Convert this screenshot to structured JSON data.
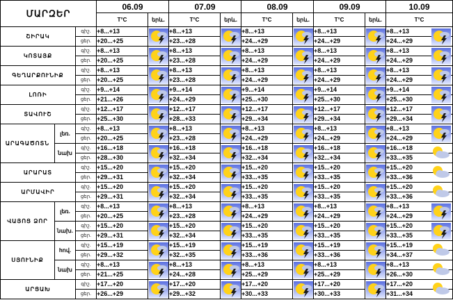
{
  "header": {
    "region_header": "ՄԱՐԶԵՐ",
    "temp_label": "T°C",
    "weather_label": "երև.",
    "dates": [
      "06.09",
      "07.09",
      "08.09",
      "09.09",
      "10.09"
    ]
  },
  "regions": [
    {
      "name": "ՇԻՐԱԿ",
      "subs": [
        {
          "zone": "",
          "lines": [
            {
              "tod": "գիշ.",
              "temps": [
                "+8...+13",
                "+8...+13",
                "+8...+13",
                "+8...+13",
                "+8...+13"
              ]
            },
            {
              "tod": "ցեր.",
              "temps": [
                "+20...+25",
                "+23...+28",
                "+24...+29",
                "+24...+29",
                "+24...+29"
              ]
            }
          ],
          "icons": [
            "storm",
            "storm",
            "storm",
            "storm",
            "storm"
          ]
        }
      ]
    },
    {
      "name": "ԿՈՏԱՅՔ",
      "subs": [
        {
          "zone": "",
          "lines": [
            {
              "tod": "գիշ.",
              "temps": [
                "+8...+13",
                "+8...+13",
                "+8...+13",
                "+8...+13",
                "+8...+13"
              ]
            },
            {
              "tod": "ցեր.",
              "temps": [
                "+20...+25",
                "+23...+28",
                "+24...+29",
                "+24...+29",
                "+24...+29"
              ]
            }
          ],
          "icons": [
            "storm",
            "storm",
            "storm",
            "storm",
            "storm"
          ]
        }
      ]
    },
    {
      "name": "ԳԵՂԱՐՔՈՒՆԻՔ",
      "subs": [
        {
          "zone": "",
          "lines": [
            {
              "tod": "գիշ.",
              "temps": [
                "+8...+13",
                "+8...+13",
                "+8...+13",
                "+8...+13",
                "+8...+13"
              ]
            },
            {
              "tod": "ցեր.",
              "temps": [
                "+20...+25",
                "+23...+28",
                "+24...+29",
                "+24...+29",
                "+24...+29"
              ]
            }
          ],
          "icons": [
            "storm",
            "storm",
            "storm",
            "storm",
            "storm"
          ]
        }
      ]
    },
    {
      "name": "ԼՈՌԻ",
      "subs": [
        {
          "zone": "",
          "lines": [
            {
              "tod": "գիշ.",
              "temps": [
                "+9...+14",
                "+9...+14",
                "+9...+14",
                "+9...+14",
                "+9...+14"
              ]
            },
            {
              "tod": "ցեր.",
              "temps": [
                "+21...+26",
                "+24...+29",
                "+25...+30",
                "+25...+30",
                "+25...+30"
              ]
            }
          ],
          "icons": [
            "storm",
            "storm",
            "storm",
            "storm",
            "storm"
          ]
        }
      ]
    },
    {
      "name": "ՏԱՎՈՒՇ",
      "subs": [
        {
          "zone": "",
          "lines": [
            {
              "tod": "գիշ.",
              "temps": [
                "+12...+17",
                "+12...+17",
                "+12...+17",
                "+12...+17",
                "+12...+17"
              ]
            },
            {
              "tod": "ցեր.",
              "temps": [
                "+25...+30",
                "+28...+33",
                "+29...+34",
                "+29...+34",
                "+29...+34"
              ]
            }
          ],
          "icons": [
            "storm",
            "storm",
            "storm",
            "storm",
            "storm"
          ]
        }
      ]
    },
    {
      "name": "ԱՐԱԳԱԾՈՏՆ",
      "subs": [
        {
          "zone": "լեռ.",
          "lines": [
            {
              "tod": "գիշ.",
              "temps": [
                "+8...+13",
                "+8...+13",
                "+8...+13",
                "+8...+13",
                "+8...+13"
              ]
            },
            {
              "tod": "ցեր.",
              "temps": [
                "+20...+25",
                "+23...+28",
                "+24...+29",
                "+24...+29",
                "+24...+29"
              ]
            }
          ],
          "icons": [
            "storm",
            "storm",
            "storm",
            "storm",
            "storm"
          ]
        },
        {
          "zone": "նախ",
          "lines": [
            {
              "tod": "գիշ.",
              "temps": [
                "+16...+18",
                "+16...+18",
                "+16...+18",
                "+16...+18",
                "+16...+18"
              ]
            },
            {
              "tod": "ցեր.",
              "temps": [
                "+28...+30",
                "+32...+34",
                "+32...+34",
                "+32...+34",
                "+33...+35"
              ]
            }
          ],
          "icons": [
            "storm",
            "storm",
            "storm",
            "storm",
            "partly"
          ]
        }
      ]
    },
    {
      "name": "ԱՐԱՐԱՏ",
      "subs": [
        {
          "zone": "",
          "lines": [
            {
              "tod": "գիշ.",
              "temps": [
                "+15...+20",
                "+15...+20",
                "+15...+20",
                "+15...+20",
                "+15...+20"
              ]
            },
            {
              "tod": "ցեր.",
              "temps": [
                "+29...+31",
                "+32...+34",
                "+33...+35",
                "+33...+35",
                "+33...+36"
              ]
            }
          ],
          "icons": [
            "storm",
            "storm",
            "storm",
            "storm",
            "partly"
          ]
        }
      ]
    },
    {
      "name": "ԱՐՄԱՎԻՐ",
      "subs": [
        {
          "zone": "",
          "lines": [
            {
              "tod": "գիշ.",
              "temps": [
                "+15...+20",
                "+15...+20",
                "+15...+20",
                "+15...+20",
                "+15...+20"
              ]
            },
            {
              "tod": "ցեր.",
              "temps": [
                "+29...+31",
                "+32...+34",
                "+33...+35",
                "+33...+35",
                "+33...+36"
              ]
            }
          ],
          "icons": [
            "storm",
            "storm",
            "storm",
            "storm",
            "partly"
          ]
        }
      ]
    },
    {
      "name": "ՎԱՅՈՑ ՁՈՐ",
      "subs": [
        {
          "zone": "լեռ.",
          "lines": [
            {
              "tod": "գիշ.",
              "temps": [
                "+8...+13",
                "+8...+13",
                "+8...+13",
                "+8...+13",
                "+8...+13"
              ]
            },
            {
              "tod": "ցեր.",
              "temps": [
                "+20...+25",
                "+23...+28",
                "+24...+29",
                "+24...+29",
                "+24...+29"
              ]
            }
          ],
          "icons": [
            "storm",
            "storm",
            "storm",
            "storm",
            "storm"
          ]
        },
        {
          "zone": "նախ.",
          "lines": [
            {
              "tod": "գիշ.",
              "temps": [
                "+15...+20",
                "+15...+20",
                "+15...+20",
                "+15...+20",
                "+15...+20"
              ]
            },
            {
              "tod": "ցեր.",
              "temps": [
                "+29...+31",
                "+32...+34",
                "+33...+35",
                "+33...+35",
                "+33...+35"
              ]
            }
          ],
          "icons": [
            "storm",
            "storm",
            "storm",
            "storm",
            "storm"
          ]
        }
      ]
    },
    {
      "name": "ՍՅՈՒՆԻՔ",
      "subs": [
        {
          "zone": "hով.",
          "lines": [
            {
              "tod": "գիշ.",
              "temps": [
                "+15...+19",
                "+15...+19",
                "+15...+19",
                "+15...+19",
                "+15...+19"
              ]
            },
            {
              "tod": "ցեր.",
              "temps": [
                "+29...+32",
                "+32...+35",
                "+33...+36",
                "+33...+36",
                "+34...+37"
              ]
            }
          ],
          "icons": [
            "storm",
            "storm",
            "storm",
            "storm",
            "partly"
          ]
        },
        {
          "zone": "նախ",
          "lines": [
            {
              "tod": "գիշ.",
              "temps": [
                "+8...+13",
                "+8...+13",
                "+8...+13",
                "+8...+13",
                "+8...+13"
              ]
            },
            {
              "tod": "ցեր.",
              "temps": [
                "+21...+25",
                "+24...+28",
                "+25...+29",
                "+25...+29",
                "+26...+30"
              ]
            }
          ],
          "icons": [
            "storm",
            "storm",
            "storm",
            "storm",
            "partly"
          ]
        }
      ]
    },
    {
      "name": "ԱՐՑԱԽ",
      "subs": [
        {
          "zone": "",
          "lines": [
            {
              "tod": "գիշ.",
              "temps": [
                "+17...+20",
                "+17...+20",
                "+17...+20",
                "+17...+20",
                "+17...+20"
              ]
            },
            {
              "tod": "ցեր.",
              "temps": [
                "+26...+29",
                "+29...+32",
                "+30...+33",
                "+30...+33",
                "+31...+34"
              ]
            }
          ],
          "icons": [
            "storm",
            "storm",
            "storm",
            "storm",
            "partly"
          ]
        }
      ]
    }
  ],
  "colors": {
    "header_fill": "#ffffff",
    "sun": "#ffd21a",
    "sky_top": "#5a6fe0",
    "sky_bottom": "#dfe6ff",
    "cloud": "#bfc9e8",
    "bolt": "#1c1c1c"
  }
}
